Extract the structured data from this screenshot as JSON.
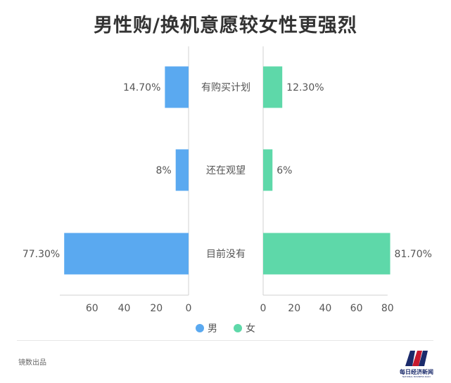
{
  "chart_data": {
    "type": "bar",
    "title": "男性购/换机意愿较女性更强烈",
    "categories": [
      "有购买计划",
      "还在观望",
      "目前没有"
    ],
    "series": [
      {
        "name": "男",
        "values": [
          14.7,
          8,
          77.3
        ],
        "labels": [
          "14.70%",
          "8%",
          "77.30%"
        ],
        "color": "#5aa9f0"
      },
      {
        "name": "女",
        "values": [
          12.3,
          6,
          81.7
        ],
        "labels": [
          "12.30%",
          "6%",
          "81.70%"
        ],
        "color": "#5ed8a9"
      }
    ],
    "left_axis": {
      "ticks": [
        60,
        40,
        20,
        0
      ]
    },
    "right_axis": {
      "ticks": [
        0,
        20,
        40,
        60,
        80
      ]
    },
    "xlim": [
      0,
      80
    ],
    "legend_position": "bottom",
    "grid": false
  },
  "footer": {
    "source": "镜数出品",
    "logo_text": "每日经济新闻",
    "logo_subtext": "NATIONAL BUSINESS DAILY"
  },
  "colors": {
    "title": "#333333",
    "axis": "#d0d0d0",
    "text": "#555555"
  }
}
